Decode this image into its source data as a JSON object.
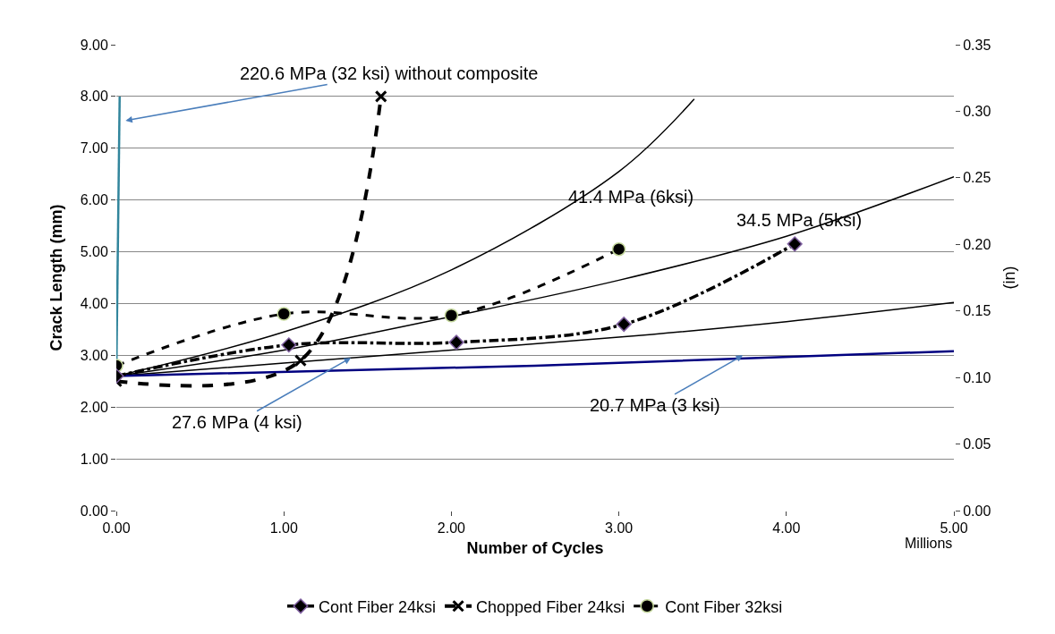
{
  "chart_data": {
    "type": "line",
    "xlabel": "Number of Cycles",
    "ylabel": "Crack Length (mm)",
    "y2label": "(in)",
    "xlim": [
      0,
      5
    ],
    "xticks": [
      {
        "value": 0,
        "label": "0.00"
      },
      {
        "value": 1,
        "label": "1.00"
      },
      {
        "value": 2,
        "label": "2.00"
      },
      {
        "value": 3,
        "label": "3.00"
      },
      {
        "value": 4,
        "label": "4.00"
      },
      {
        "value": 5,
        "label": "5.00"
      }
    ],
    "ylim": [
      0,
      9
    ],
    "yticks": [
      {
        "value": 0,
        "label": "0.00"
      },
      {
        "value": 1,
        "label": "1.00"
      },
      {
        "value": 2,
        "label": "2.00"
      },
      {
        "value": 3,
        "label": "3.00"
      },
      {
        "value": 4,
        "label": "4.00"
      },
      {
        "value": 5,
        "label": "5.00"
      },
      {
        "value": 6,
        "label": "6.00"
      },
      {
        "value": 7,
        "label": "7.00"
      },
      {
        "value": 8,
        "label": "8.00"
      },
      {
        "value": 9,
        "label": "9.00"
      }
    ],
    "y2lim": [
      0,
      0.35
    ],
    "y2ticks": [
      {
        "value": 0,
        "label": "0.00"
      },
      {
        "value": 0.05,
        "label": "0.05"
      },
      {
        "value": 0.1,
        "label": "0.10"
      },
      {
        "value": 0.15,
        "label": "0.15"
      },
      {
        "value": 0.2,
        "label": "0.20"
      },
      {
        "value": 0.25,
        "label": "0.25"
      },
      {
        "value": 0.3,
        "label": "0.30"
      },
      {
        "value": 0.35,
        "label": "0.35"
      }
    ],
    "grid": "y",
    "legend": "bottom",
    "series": [
      {
        "name": "Cont Fiber 24ksi",
        "color": "#000000",
        "marker": "diamond",
        "line_style": "dashdot",
        "x": [
          0,
          1.03,
          2.03,
          3.03,
          4.05
        ],
        "values": [
          2.6,
          3.2,
          3.25,
          3.6,
          5.15
        ]
      },
      {
        "name": "Chopped Fiber 24ksi",
        "color": "#000000",
        "marker": "cross",
        "line_style": "dashed",
        "x": [
          0,
          1.1,
          1.58
        ],
        "values": [
          2.5,
          2.9,
          8.0
        ]
      },
      {
        "name": "Cont Fiber 32ksi",
        "color": "#000000",
        "marker": "circle",
        "line_style": "dotted",
        "x": [
          0,
          1,
          2,
          3
        ],
        "values": [
          2.8,
          3.8,
          3.77,
          5.05
        ]
      },
      {
        "color": "#000000",
        "marker": "none",
        "line_style": "solid",
        "x": [
          0,
          1,
          2,
          3,
          3.45
        ],
        "values": [
          2.6,
          3.45,
          4.65,
          6.55,
          7.95
        ]
      },
      {
        "color": "#000000",
        "marker": "none",
        "line_style": "solid",
        "x": [
          0,
          1,
          2,
          3,
          4,
          5
        ],
        "values": [
          2.6,
          3.1,
          3.75,
          4.45,
          5.3,
          6.45
        ]
      },
      {
        "color": "#000000",
        "marker": "none",
        "line_style": "solid",
        "x": [
          0,
          1,
          2,
          3,
          4,
          5
        ],
        "values": [
          2.6,
          2.85,
          3.1,
          3.35,
          3.65,
          4.02
        ]
      },
      {
        "color": "#000080",
        "marker": "none",
        "line_style": "solid",
        "x": [
          0,
          2.5,
          5
        ],
        "values": [
          2.6,
          2.8,
          3.08
        ]
      },
      {
        "color": "#31859c",
        "marker": "none",
        "line_style": "solid",
        "x": [
          0,
          0.02
        ],
        "values": [
          2.6,
          8.0
        ]
      }
    ],
    "annotations": [
      "220.6 MPa (32 ksi) without composite",
      "41.4 MPa (6ksi)",
      "34.5 MPa (5ksi)",
      {
        "text": "27.6 MPa (4 ksi)",
        "x": 1.4,
        "y": 2.95
      },
      {
        "text": "20.7 MPa (3 ksi)",
        "x": 3.74,
        "y": 3.0
      },
      "Millions"
    ]
  }
}
